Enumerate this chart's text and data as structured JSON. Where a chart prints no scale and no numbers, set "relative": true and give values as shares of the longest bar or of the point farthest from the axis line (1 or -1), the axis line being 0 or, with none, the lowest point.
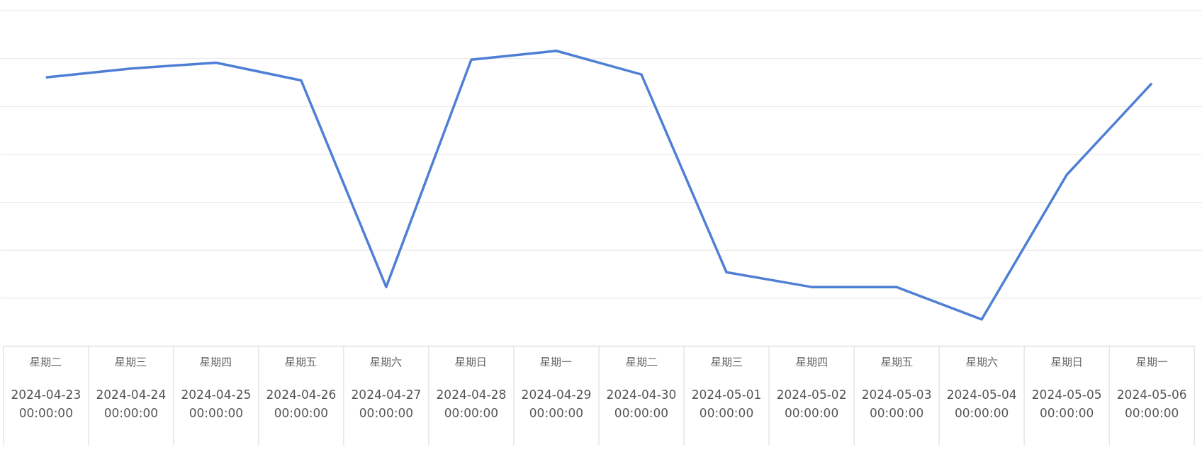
{
  "chart_data": {
    "type": "line",
    "relative": true,
    "grid": "y",
    "marker": "none",
    "line_style": "solid",
    "categories": [
      "星期二\n2024-04-23 00:00:00",
      "星期三\n2024-04-24 00:00:00",
      "星期四\n2024-04-25 00:00:00",
      "星期五\n2024-04-26 00:00:00",
      "星期六\n2024-04-27 00:00:00",
      "星期日\n2024-04-28 00:00:00",
      "星期一\n2024-04-29 00:00:00",
      "星期二\n2024-04-30 00:00:00",
      "星期三\n2024-05-01 00:00:00",
      "星期四\n2024-05-02 00:00:00",
      "星期五\n2024-05-03 00:00:00",
      "星期六\n2024-05-04 00:00:00",
      "星期日\n2024-05-05 00:00:00",
      "星期一\n2024-05-06 00:00:00"
    ],
    "series": [
      {
        "color": "#4f7fd4",
        "values": [
          0.91,
          0.94,
          0.96,
          0.9,
          0.2,
          0.97,
          1,
          0.92,
          0.25,
          0.2,
          0.2,
          0.09,
          0.58,
          0.89
        ]
      }
    ]
  }
}
